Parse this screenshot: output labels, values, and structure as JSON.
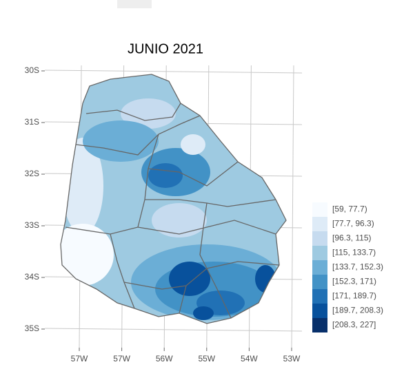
{
  "title": "JUNIO 2021",
  "lat_labels": [
    "30S",
    "31S",
    "32S",
    "33S",
    "34S",
    "35S"
  ],
  "lon_labels": [
    "57W",
    "57W",
    "56W",
    "55W",
    "54W",
    "53W"
  ],
  "legend": [
    {
      "label": "[59, 77.7)",
      "color": "#f7fbff"
    },
    {
      "label": "[77.7, 96.3)",
      "color": "#deebf7"
    },
    {
      "label": "[96.3, 115)",
      "color": "#c6dbef"
    },
    {
      "label": "[115, 133.7)",
      "color": "#9ecae1"
    },
    {
      "label": "[133.7, 152.3)",
      "color": "#6baed6"
    },
    {
      "label": "[152.3, 171)",
      "color": "#4292c6"
    },
    {
      "label": "[171, 189.7)",
      "color": "#2171b5"
    },
    {
      "label": "[189.7, 208.3)",
      "color": "#08519c"
    },
    {
      "label": "[208.3, 227]",
      "color": "#08306b"
    }
  ]
}
